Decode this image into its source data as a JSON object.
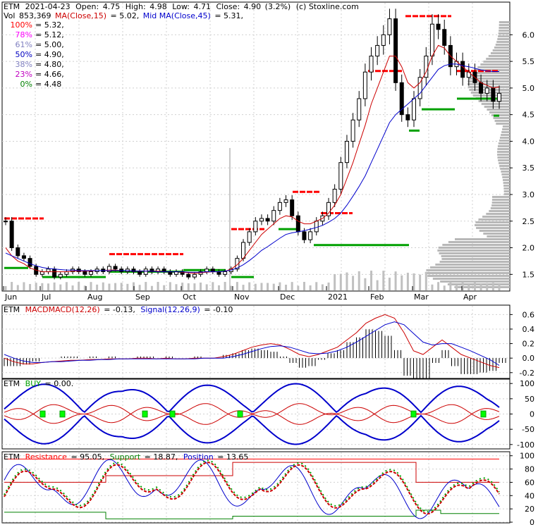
{
  "header": {
    "symbol": "ETM",
    "date": "2021-04-23",
    "open_label": "Open:",
    "open": "4.75",
    "high_label": "High:",
    "high": "4.98",
    "low_label": "Low:",
    "low": "4.71",
    "close_label": "Close:",
    "close": "4.90",
    "change": "(3.2%)",
    "source": "(c) Stoxline.com",
    "vol_label": "Vol",
    "vol": "853,369",
    "ma_label": "MA(Close,15)",
    "ma_value": "= 5.02,",
    "midma_label": "Mid MA(Close,45)",
    "midma_value": "= 5.31,"
  },
  "fib_levels": [
    {
      "label": "100%",
      "value": "= 5.32,",
      "color": "#ff0000"
    },
    {
      "label": "78%",
      "value": "= 5.12,",
      "color": "#ff00ff"
    },
    {
      "label": "61%",
      "value": "= 5.00,",
      "color": "#8080c0"
    },
    {
      "label": "50%",
      "value": "= 4.90,",
      "color": "#0000c0"
    },
    {
      "label": "38%",
      "value": "= 4.80,",
      "color": "#8080c0"
    },
    {
      "label": "23%",
      "value": "= 4.66,",
      "color": "#c000c0"
    },
    {
      "label": "0%",
      "value": "= 4.48",
      "color": "#008000"
    }
  ],
  "months": [
    "Jun",
    "Jul",
    "Aug",
    "Sep",
    "Oct",
    "Nov",
    "Dec",
    "2021",
    "Feb",
    "Mar",
    "Apr"
  ],
  "macd": {
    "symbol": "ETM",
    "label": "MACD",
    "label2": "MACD(12,26)",
    "value": "= -0.13,",
    "signal_label": "Signal(12,26,9)",
    "signal_value": "= -0.10"
  },
  "buy": {
    "symbol": "ETM",
    "label": "BUY",
    "value": "= 0.00."
  },
  "rsp": {
    "symbol": "ETM",
    "res_label": "Resistance",
    "res_value": "= 95.05,",
    "sup_label": "Support",
    "sup_value": "= 18.87,",
    "pos_label": "Position",
    "pos_value": "= 13.65"
  },
  "colors": {
    "ma15": "#cc0000",
    "ma45": "#0000cc",
    "resistance": "#ff0000",
    "support": "#008000",
    "volume": "#c0c0c0",
    "fill": "#b8b8b8"
  },
  "chart_data": [
    {
      "type": "candlestick",
      "panel": "price",
      "ylim": [
        1.2,
        6.6
      ],
      "y_ticks": [
        "1.5",
        "2.0",
        "2.5",
        "3.0",
        "3.5",
        "4.0",
        "4.5",
        "5.0",
        "5.5",
        "6.0"
      ],
      "y_tick_values": [
        1.5,
        2.0,
        2.5,
        3.0,
        3.5,
        4.0,
        4.5,
        5.0,
        5.5,
        6.0
      ],
      "close_series": [
        2.5,
        2.0,
        1.85,
        1.8,
        1.65,
        1.5,
        1.55,
        1.6,
        1.45,
        1.5,
        1.55,
        1.6,
        1.55,
        1.5,
        1.55,
        1.6,
        1.55,
        1.65,
        1.6,
        1.55,
        1.6,
        1.55,
        1.5,
        1.6,
        1.55,
        1.6,
        1.55,
        1.5,
        1.55,
        1.5,
        1.45,
        1.5,
        1.55,
        1.6,
        1.55,
        1.5,
        1.55,
        1.6,
        1.8,
        2.1,
        2.3,
        2.5,
        2.55,
        2.5,
        2.7,
        2.85,
        2.9,
        2.6,
        2.3,
        2.15,
        2.3,
        2.5,
        2.6,
        2.85,
        3.1,
        3.6,
        4.0,
        4.4,
        4.8,
        5.3,
        5.6,
        5.8,
        6.0,
        6.3,
        5.1,
        4.5,
        4.4,
        4.8,
        5.2,
        5.6,
        6.2,
        6.1,
        5.8,
        5.4,
        5.5,
        5.2,
        5.3,
        5.1,
        4.9,
        5.0,
        4.75,
        4.9
      ],
      "ma15_series": [
        2.0,
        1.85,
        1.75,
        1.7,
        1.62,
        1.58,
        1.55,
        1.55,
        1.55,
        1.55,
        1.55,
        1.56,
        1.56,
        1.56,
        1.56,
        1.57,
        1.57,
        1.58,
        1.58,
        1.57,
        1.57,
        1.56,
        1.56,
        1.56,
        1.56,
        1.56,
        1.55,
        1.55,
        1.55,
        1.54,
        1.53,
        1.52,
        1.53,
        1.54,
        1.55,
        1.55,
        1.56,
        1.6,
        1.68,
        1.8,
        1.95,
        2.1,
        2.25,
        2.35,
        2.45,
        2.55,
        2.6,
        2.58,
        2.5,
        2.45,
        2.45,
        2.5,
        2.55,
        2.65,
        2.8,
        3.0,
        3.3,
        3.6,
        3.95,
        4.3,
        4.7,
        5.0,
        5.3,
        5.6,
        5.6,
        5.4,
        5.1,
        5.0,
        5.1,
        5.3,
        5.6,
        5.8,
        5.75,
        5.6,
        5.5,
        5.4,
        5.3,
        5.2,
        5.1,
        5.05,
        5.0,
        5.02
      ],
      "ma45_series": [
        1.9,
        1.85,
        1.8,
        1.75,
        1.7,
        1.66,
        1.63,
        1.61,
        1.6,
        1.59,
        1.58,
        1.58,
        1.57,
        1.57,
        1.57,
        1.57,
        1.57,
        1.57,
        1.57,
        1.57,
        1.57,
        1.56,
        1.56,
        1.56,
        1.56,
        1.55,
        1.55,
        1.55,
        1.55,
        1.55,
        1.54,
        1.54,
        1.54,
        1.55,
        1.55,
        1.55,
        1.56,
        1.58,
        1.62,
        1.68,
        1.76,
        1.85,
        1.95,
        2.02,
        2.1,
        2.18,
        2.25,
        2.28,
        2.3,
        2.32,
        2.35,
        2.38,
        2.42,
        2.48,
        2.55,
        2.65,
        2.8,
        2.97,
        3.15,
        3.35,
        3.6,
        3.85,
        4.1,
        4.35,
        4.5,
        4.6,
        4.7,
        4.8,
        4.9,
        5.05,
        5.2,
        5.35,
        5.42,
        5.45,
        5.45,
        5.42,
        5.4,
        5.37,
        5.34,
        5.32,
        5.31,
        5.31
      ]
    },
    {
      "type": "line",
      "panel": "macd",
      "ylim": [
        -0.27,
        0.72
      ],
      "y_ticks": [
        "0.6",
        "0.4",
        "0.2",
        "0.0",
        "-0.2"
      ],
      "y_tick_values": [
        0.6,
        0.4,
        0.2,
        0.0,
        -0.2
      ],
      "series": [
        {
          "values": [
            0.0,
            -0.05,
            -0.08,
            -0.08,
            -0.06,
            -0.05,
            -0.04,
            -0.03,
            -0.03,
            -0.02,
            -0.02,
            -0.01,
            -0.01,
            -0.01,
            0.0,
            0.0,
            -0.01,
            0.0,
            -0.01,
            -0.01,
            0.0,
            0.0,
            0.0,
            0.02,
            0.05,
            0.1,
            0.15,
            0.18,
            0.2,
            0.18,
            0.12,
            0.05,
            0.02,
            0.05,
            0.1,
            0.15,
            0.25,
            0.35,
            0.48,
            0.55,
            0.6,
            0.55,
            0.35,
            0.1,
            0.05,
            0.15,
            0.25,
            0.15,
            0.05,
            0.0,
            -0.05,
            -0.1,
            -0.13
          ]
        },
        {
          "values": [
            0.05,
            0.0,
            -0.04,
            -0.06,
            -0.06,
            -0.05,
            -0.05,
            -0.04,
            -0.03,
            -0.03,
            -0.02,
            -0.02,
            -0.01,
            -0.01,
            -0.01,
            -0.01,
            -0.01,
            -0.01,
            -0.01,
            -0.01,
            -0.01,
            0.0,
            0.0,
            0.0,
            0.02,
            0.05,
            0.09,
            0.13,
            0.16,
            0.17,
            0.15,
            0.11,
            0.07,
            0.06,
            0.07,
            0.1,
            0.15,
            0.22,
            0.3,
            0.38,
            0.46,
            0.5,
            0.46,
            0.34,
            0.22,
            0.18,
            0.2,
            0.2,
            0.15,
            0.1,
            0.04,
            -0.02,
            -0.1
          ]
        }
      ]
    },
    {
      "type": "line",
      "panel": "buy",
      "ylim": [
        -112,
        112
      ],
      "y_ticks": [
        "100",
        "50",
        "0",
        "-50",
        "-100"
      ],
      "y_tick_values": [
        100,
        50,
        0,
        -50,
        -100
      ]
    },
    {
      "type": "line",
      "panel": "resistance-support",
      "ylim": [
        0,
        105
      ],
      "y_ticks": [
        "100",
        "80",
        "60",
        "40",
        "20",
        "0"
      ],
      "y_tick_values": [
        100,
        80,
        60,
        40,
        20,
        0
      ],
      "resistance_value": 95.05,
      "support_value": 18.87,
      "position_value": 13.65
    }
  ]
}
